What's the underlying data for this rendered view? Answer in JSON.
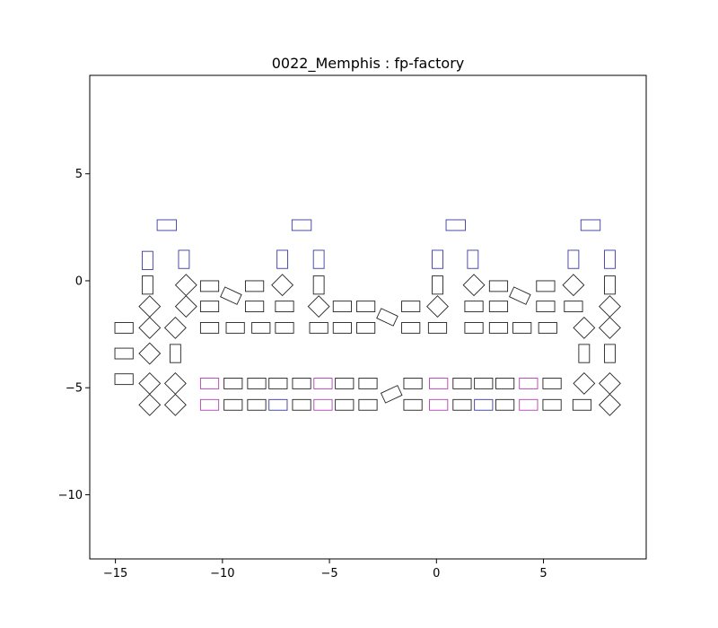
{
  "chart_data": {
    "type": "scatter",
    "title": "0022_Memphis : fp-factory",
    "xlabel": "",
    "ylabel": "",
    "xlim": [
      -16.2,
      9.8
    ],
    "ylim": [
      -13.0,
      9.6
    ],
    "grid": false,
    "legend": "none",
    "x_ticks": [
      -15,
      -10,
      -5,
      0,
      5
    ],
    "x_tick_labels": [
      "−15",
      "−10",
      "−5",
      "0",
      "5"
    ],
    "y_ticks": [
      5,
      0,
      -5,
      -10
    ],
    "y_tick_labels": [
      "5",
      "0",
      "−5",
      "−10"
    ],
    "colors": {
      "black": "#222222",
      "blue": "#3a3aa0",
      "magenta": "#b040b0"
    },
    "rects": [
      {
        "x": -12.6,
        "y": 2.6,
        "w": 0.9,
        "h": 0.5,
        "angle": 0,
        "color": "blue"
      },
      {
        "x": -6.3,
        "y": 2.6,
        "w": 0.9,
        "h": 0.5,
        "angle": 0,
        "color": "blue"
      },
      {
        "x": 0.9,
        "y": 2.6,
        "w": 0.9,
        "h": 0.5,
        "angle": 0,
        "color": "blue"
      },
      {
        "x": 7.2,
        "y": 2.6,
        "w": 0.9,
        "h": 0.5,
        "angle": 0,
        "color": "blue"
      },
      {
        "x": -13.5,
        "y": 0.95,
        "w": 0.5,
        "h": 0.85,
        "angle": 0,
        "color": "blue"
      },
      {
        "x": -11.8,
        "y": 1.0,
        "w": 0.5,
        "h": 0.85,
        "angle": 0,
        "color": "blue"
      },
      {
        "x": -7.2,
        "y": 1.0,
        "w": 0.5,
        "h": 0.85,
        "angle": 0,
        "color": "blue"
      },
      {
        "x": -5.5,
        "y": 1.0,
        "w": 0.5,
        "h": 0.85,
        "angle": 0,
        "color": "blue"
      },
      {
        "x": 0.05,
        "y": 1.0,
        "w": 0.5,
        "h": 0.85,
        "angle": 0,
        "color": "blue"
      },
      {
        "x": 1.7,
        "y": 1.0,
        "w": 0.5,
        "h": 0.85,
        "angle": 0,
        "color": "blue"
      },
      {
        "x": 6.4,
        "y": 1.0,
        "w": 0.5,
        "h": 0.85,
        "angle": 0,
        "color": "blue"
      },
      {
        "x": 8.1,
        "y": 1.0,
        "w": 0.5,
        "h": 0.85,
        "angle": 0,
        "color": "blue"
      },
      {
        "x": -13.5,
        "y": -0.2,
        "w": 0.5,
        "h": 0.85,
        "angle": 0,
        "color": "black"
      },
      {
        "x": -11.7,
        "y": -0.2,
        "w": 0.7,
        "h": 0.7,
        "angle": 45,
        "color": "black"
      },
      {
        "x": -10.6,
        "y": -0.25,
        "w": 0.85,
        "h": 0.5,
        "angle": 0,
        "color": "black"
      },
      {
        "x": -9.6,
        "y": -0.7,
        "w": 0.85,
        "h": 0.5,
        "angle": -25,
        "color": "black"
      },
      {
        "x": -8.5,
        "y": -0.25,
        "w": 0.85,
        "h": 0.5,
        "angle": 0,
        "color": "black"
      },
      {
        "x": -7.2,
        "y": -0.2,
        "w": 0.7,
        "h": 0.7,
        "angle": 45,
        "color": "black"
      },
      {
        "x": -5.5,
        "y": -0.2,
        "w": 0.5,
        "h": 0.85,
        "angle": 0,
        "color": "black"
      },
      {
        "x": 0.05,
        "y": -0.2,
        "w": 0.5,
        "h": 0.85,
        "angle": 0,
        "color": "black"
      },
      {
        "x": 1.75,
        "y": -0.2,
        "w": 0.7,
        "h": 0.7,
        "angle": 45,
        "color": "black"
      },
      {
        "x": 2.9,
        "y": -0.25,
        "w": 0.85,
        "h": 0.5,
        "angle": 0,
        "color": "black"
      },
      {
        "x": 3.9,
        "y": -0.7,
        "w": 0.85,
        "h": 0.5,
        "angle": -25,
        "color": "black"
      },
      {
        "x": 5.1,
        "y": -0.25,
        "w": 0.85,
        "h": 0.5,
        "angle": 0,
        "color": "black"
      },
      {
        "x": 6.4,
        "y": -0.2,
        "w": 0.7,
        "h": 0.7,
        "angle": 45,
        "color": "black"
      },
      {
        "x": 8.1,
        "y": -0.2,
        "w": 0.5,
        "h": 0.85,
        "angle": 0,
        "color": "black"
      },
      {
        "x": -13.4,
        "y": -1.2,
        "w": 0.7,
        "h": 0.7,
        "angle": 45,
        "color": "black"
      },
      {
        "x": -11.7,
        "y": -1.2,
        "w": 0.7,
        "h": 0.7,
        "angle": 45,
        "color": "black"
      },
      {
        "x": -10.6,
        "y": -1.2,
        "w": 0.85,
        "h": 0.5,
        "angle": 0,
        "color": "black"
      },
      {
        "x": -8.5,
        "y": -1.2,
        "w": 0.85,
        "h": 0.5,
        "angle": 0,
        "color": "black"
      },
      {
        "x": -7.1,
        "y": -1.2,
        "w": 0.85,
        "h": 0.5,
        "angle": 0,
        "color": "black"
      },
      {
        "x": -5.5,
        "y": -1.2,
        "w": 0.7,
        "h": 0.7,
        "angle": 45,
        "color": "black"
      },
      {
        "x": -4.4,
        "y": -1.2,
        "w": 0.85,
        "h": 0.5,
        "angle": 0,
        "color": "black"
      },
      {
        "x": -3.3,
        "y": -1.2,
        "w": 0.85,
        "h": 0.5,
        "angle": 0,
        "color": "black"
      },
      {
        "x": -2.3,
        "y": -1.7,
        "w": 0.85,
        "h": 0.5,
        "angle": -25,
        "color": "black"
      },
      {
        "x": -1.2,
        "y": -1.2,
        "w": 0.85,
        "h": 0.5,
        "angle": 0,
        "color": "black"
      },
      {
        "x": 0.05,
        "y": -1.2,
        "w": 0.7,
        "h": 0.7,
        "angle": 45,
        "color": "black"
      },
      {
        "x": 1.75,
        "y": -1.2,
        "w": 0.85,
        "h": 0.5,
        "angle": 0,
        "color": "black"
      },
      {
        "x": 2.9,
        "y": -1.2,
        "w": 0.85,
        "h": 0.5,
        "angle": 0,
        "color": "black"
      },
      {
        "x": 5.1,
        "y": -1.2,
        "w": 0.85,
        "h": 0.5,
        "angle": 0,
        "color": "black"
      },
      {
        "x": 6.4,
        "y": -1.2,
        "w": 0.85,
        "h": 0.5,
        "angle": 0,
        "color": "black"
      },
      {
        "x": 8.1,
        "y": -1.2,
        "w": 0.7,
        "h": 0.7,
        "angle": 45,
        "color": "black"
      },
      {
        "x": -14.6,
        "y": -2.2,
        "w": 0.85,
        "h": 0.5,
        "angle": 0,
        "color": "black"
      },
      {
        "x": -13.4,
        "y": -2.2,
        "w": 0.7,
        "h": 0.7,
        "angle": 45,
        "color": "black"
      },
      {
        "x": -12.2,
        "y": -2.2,
        "w": 0.7,
        "h": 0.7,
        "angle": 45,
        "color": "black"
      },
      {
        "x": -10.6,
        "y": -2.2,
        "w": 0.85,
        "h": 0.5,
        "angle": 0,
        "color": "black"
      },
      {
        "x": -9.4,
        "y": -2.2,
        "w": 0.85,
        "h": 0.5,
        "angle": 0,
        "color": "black"
      },
      {
        "x": -8.2,
        "y": -2.2,
        "w": 0.85,
        "h": 0.5,
        "angle": 0,
        "color": "black"
      },
      {
        "x": -7.1,
        "y": -2.2,
        "w": 0.85,
        "h": 0.5,
        "angle": 0,
        "color": "black"
      },
      {
        "x": -5.5,
        "y": -2.2,
        "w": 0.85,
        "h": 0.5,
        "angle": 0,
        "color": "black"
      },
      {
        "x": -4.4,
        "y": -2.2,
        "w": 0.85,
        "h": 0.5,
        "angle": 0,
        "color": "black"
      },
      {
        "x": -3.3,
        "y": -2.2,
        "w": 0.85,
        "h": 0.5,
        "angle": 0,
        "color": "black"
      },
      {
        "x": -1.2,
        "y": -2.2,
        "w": 0.85,
        "h": 0.5,
        "angle": 0,
        "color": "black"
      },
      {
        "x": 0.05,
        "y": -2.2,
        "w": 0.85,
        "h": 0.5,
        "angle": 0,
        "color": "black"
      },
      {
        "x": 1.75,
        "y": -2.2,
        "w": 0.85,
        "h": 0.5,
        "angle": 0,
        "color": "black"
      },
      {
        "x": 2.9,
        "y": -2.2,
        "w": 0.85,
        "h": 0.5,
        "angle": 0,
        "color": "black"
      },
      {
        "x": 4.0,
        "y": -2.2,
        "w": 0.85,
        "h": 0.5,
        "angle": 0,
        "color": "black"
      },
      {
        "x": 5.2,
        "y": -2.2,
        "w": 0.85,
        "h": 0.5,
        "angle": 0,
        "color": "black"
      },
      {
        "x": 6.9,
        "y": -2.2,
        "w": 0.7,
        "h": 0.7,
        "angle": 45,
        "color": "black"
      },
      {
        "x": 8.1,
        "y": -2.2,
        "w": 0.7,
        "h": 0.7,
        "angle": 45,
        "color": "black"
      },
      {
        "x": -14.6,
        "y": -3.4,
        "w": 0.85,
        "h": 0.5,
        "angle": 0,
        "color": "black"
      },
      {
        "x": -13.4,
        "y": -3.4,
        "w": 0.7,
        "h": 0.7,
        "angle": 45,
        "color": "black"
      },
      {
        "x": -12.2,
        "y": -3.4,
        "w": 0.5,
        "h": 0.85,
        "angle": 0,
        "color": "black"
      },
      {
        "x": 6.9,
        "y": -3.4,
        "w": 0.5,
        "h": 0.85,
        "angle": 0,
        "color": "black"
      },
      {
        "x": 8.1,
        "y": -3.4,
        "w": 0.5,
        "h": 0.85,
        "angle": 0,
        "color": "black"
      },
      {
        "x": -14.6,
        "y": -4.6,
        "w": 0.85,
        "h": 0.5,
        "angle": 0,
        "color": "black"
      },
      {
        "x": -13.4,
        "y": -4.8,
        "w": 0.7,
        "h": 0.7,
        "angle": 45,
        "color": "black"
      },
      {
        "x": -12.2,
        "y": -4.8,
        "w": 0.7,
        "h": 0.7,
        "angle": 45,
        "color": "black"
      },
      {
        "x": -10.6,
        "y": -4.8,
        "w": 0.85,
        "h": 0.5,
        "angle": 0,
        "color": "magenta"
      },
      {
        "x": -9.5,
        "y": -4.8,
        "w": 0.85,
        "h": 0.5,
        "angle": 0,
        "color": "black"
      },
      {
        "x": -8.4,
        "y": -4.8,
        "w": 0.85,
        "h": 0.5,
        "angle": 0,
        "color": "black"
      },
      {
        "x": -7.4,
        "y": -4.8,
        "w": 0.85,
        "h": 0.5,
        "angle": 0,
        "color": "black"
      },
      {
        "x": -6.3,
        "y": -4.8,
        "w": 0.85,
        "h": 0.5,
        "angle": 0,
        "color": "black"
      },
      {
        "x": -5.3,
        "y": -4.8,
        "w": 0.85,
        "h": 0.5,
        "angle": 0,
        "color": "magenta"
      },
      {
        "x": -4.3,
        "y": -4.8,
        "w": 0.85,
        "h": 0.5,
        "angle": 0,
        "color": "black"
      },
      {
        "x": -3.2,
        "y": -4.8,
        "w": 0.85,
        "h": 0.5,
        "angle": 0,
        "color": "black"
      },
      {
        "x": -2.1,
        "y": -5.3,
        "w": 0.85,
        "h": 0.5,
        "angle": 25,
        "color": "black"
      },
      {
        "x": -1.1,
        "y": -4.8,
        "w": 0.85,
        "h": 0.5,
        "angle": 0,
        "color": "black"
      },
      {
        "x": 0.1,
        "y": -4.8,
        "w": 0.85,
        "h": 0.5,
        "angle": 0,
        "color": "magenta"
      },
      {
        "x": 1.2,
        "y": -4.8,
        "w": 0.85,
        "h": 0.5,
        "angle": 0,
        "color": "black"
      },
      {
        "x": 2.2,
        "y": -4.8,
        "w": 0.85,
        "h": 0.5,
        "angle": 0,
        "color": "black"
      },
      {
        "x": 3.2,
        "y": -4.8,
        "w": 0.85,
        "h": 0.5,
        "angle": 0,
        "color": "black"
      },
      {
        "x": 4.3,
        "y": -4.8,
        "w": 0.85,
        "h": 0.5,
        "angle": 0,
        "color": "magenta"
      },
      {
        "x": 5.4,
        "y": -4.8,
        "w": 0.85,
        "h": 0.5,
        "angle": 0,
        "color": "black"
      },
      {
        "x": 6.9,
        "y": -4.8,
        "w": 0.7,
        "h": 0.7,
        "angle": 45,
        "color": "black"
      },
      {
        "x": 8.1,
        "y": -4.8,
        "w": 0.7,
        "h": 0.7,
        "angle": 45,
        "color": "black"
      },
      {
        "x": -13.4,
        "y": -5.8,
        "w": 0.7,
        "h": 0.7,
        "angle": 45,
        "color": "black"
      },
      {
        "x": -12.2,
        "y": -5.8,
        "w": 0.7,
        "h": 0.7,
        "angle": 45,
        "color": "black"
      },
      {
        "x": -10.6,
        "y": -5.8,
        "w": 0.85,
        "h": 0.5,
        "angle": 0,
        "color": "magenta"
      },
      {
        "x": -9.5,
        "y": -5.8,
        "w": 0.85,
        "h": 0.5,
        "angle": 0,
        "color": "black"
      },
      {
        "x": -8.4,
        "y": -5.8,
        "w": 0.85,
        "h": 0.5,
        "angle": 0,
        "color": "black"
      },
      {
        "x": -7.4,
        "y": -5.8,
        "w": 0.85,
        "h": 0.5,
        "angle": 0,
        "color": "blue"
      },
      {
        "x": -6.3,
        "y": -5.8,
        "w": 0.85,
        "h": 0.5,
        "angle": 0,
        "color": "black"
      },
      {
        "x": -5.3,
        "y": -5.8,
        "w": 0.85,
        "h": 0.5,
        "angle": 0,
        "color": "magenta"
      },
      {
        "x": -4.3,
        "y": -5.8,
        "w": 0.85,
        "h": 0.5,
        "angle": 0,
        "color": "black"
      },
      {
        "x": -3.2,
        "y": -5.8,
        "w": 0.85,
        "h": 0.5,
        "angle": 0,
        "color": "black"
      },
      {
        "x": -1.1,
        "y": -5.8,
        "w": 0.85,
        "h": 0.5,
        "angle": 0,
        "color": "black"
      },
      {
        "x": 0.1,
        "y": -5.8,
        "w": 0.85,
        "h": 0.5,
        "angle": 0,
        "color": "magenta"
      },
      {
        "x": 1.2,
        "y": -5.8,
        "w": 0.85,
        "h": 0.5,
        "angle": 0,
        "color": "black"
      },
      {
        "x": 2.2,
        "y": -5.8,
        "w": 0.85,
        "h": 0.5,
        "angle": 0,
        "color": "blue"
      },
      {
        "x": 3.2,
        "y": -5.8,
        "w": 0.85,
        "h": 0.5,
        "angle": 0,
        "color": "black"
      },
      {
        "x": 4.3,
        "y": -5.8,
        "w": 0.85,
        "h": 0.5,
        "angle": 0,
        "color": "magenta"
      },
      {
        "x": 5.4,
        "y": -5.8,
        "w": 0.85,
        "h": 0.5,
        "angle": 0,
        "color": "black"
      },
      {
        "x": 6.8,
        "y": -5.8,
        "w": 0.85,
        "h": 0.5,
        "angle": 0,
        "color": "black"
      },
      {
        "x": 8.1,
        "y": -5.8,
        "w": 0.7,
        "h": 0.7,
        "angle": 45,
        "color": "black"
      }
    ]
  }
}
